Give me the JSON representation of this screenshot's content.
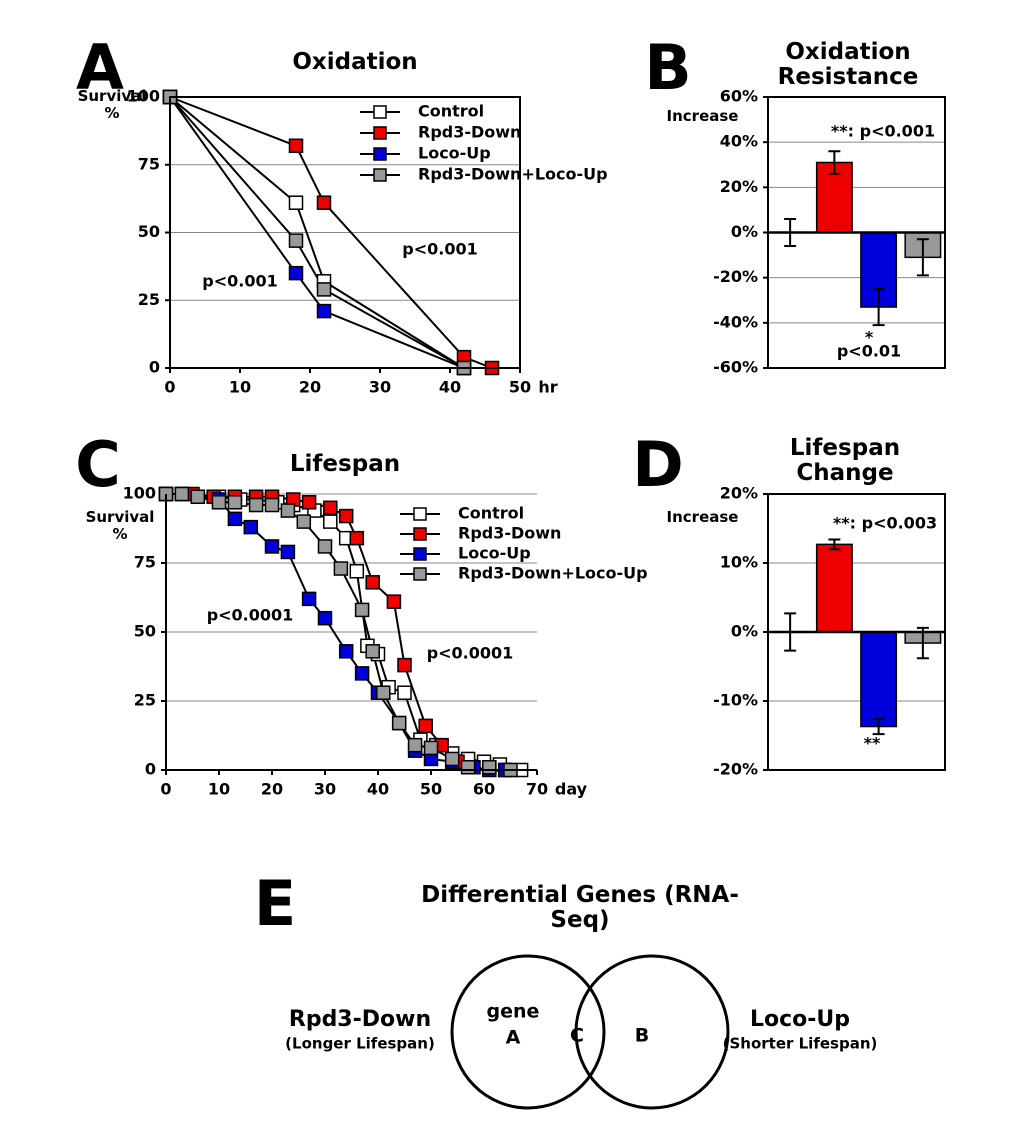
{
  "chart_data": [
    {
      "type": "line",
      "panel": "A",
      "title": "Oxidation",
      "ylabel": "Survival %",
      "xlabel": "hr",
      "xlim": [
        0,
        50
      ],
      "xticks": [
        0,
        10,
        20,
        30,
        40,
        50
      ],
      "ylim": [
        0,
        100
      ],
      "yticks": [
        0,
        25,
        50,
        75,
        100
      ],
      "grid": true,
      "series": [
        {
          "name": "Control",
          "color": "#ffffff",
          "x": [
            0,
            18,
            22,
            42
          ],
          "values": [
            100,
            61,
            32,
            0
          ]
        },
        {
          "name": "Rpd3-Down",
          "color": "#ee0000",
          "x": [
            0,
            18,
            22,
            42,
            46
          ],
          "values": [
            100,
            82,
            61,
            4,
            0
          ]
        },
        {
          "name": "Loco-Up",
          "color": "#0000dd",
          "x": [
            0,
            18,
            22,
            42
          ],
          "values": [
            100,
            35,
            21,
            0
          ]
        },
        {
          "name": "Rpd3-Down+Loco-Up",
          "color": "#999999",
          "x": [
            0,
            18,
            22,
            42
          ],
          "values": [
            100,
            47,
            29,
            0
          ]
        }
      ],
      "annotations": [
        "p<0.001",
        "p<0.001"
      ]
    },
    {
      "type": "bar",
      "panel": "B",
      "title": "Oxidation Resistance",
      "ylabel": "Increase",
      "categories": [
        null,
        null,
        null,
        null
      ],
      "values": [
        0,
        31,
        -33,
        -11
      ],
      "errors": [
        6,
        5,
        8,
        8
      ],
      "colors": [
        "#ffffff",
        "#ee0000",
        "#0000dd",
        "#999999"
      ],
      "ylim": [
        -60,
        60
      ],
      "yticks": [
        {
          "value": -60,
          "label": "-60%"
        },
        {
          "value": -40,
          "label": "-40%"
        },
        {
          "value": -20,
          "label": "-20%"
        },
        {
          "value": 0,
          "label": "0%"
        },
        {
          "value": 20,
          "label": "20%"
        },
        {
          "value": 40,
          "label": "40%"
        },
        {
          "value": 60,
          "label": "60%"
        }
      ],
      "grid": true,
      "annotations": [
        "**: p<0.001",
        "*",
        "p<0.01"
      ]
    },
    {
      "type": "line",
      "panel": "C",
      "title": "Lifespan",
      "ylabel": "Survival %",
      "xlabel": "day",
      "xlim": [
        0,
        70
      ],
      "xticks": [
        0,
        10,
        20,
        30,
        40,
        50,
        60,
        70
      ],
      "ylim": [
        0,
        100
      ],
      "yticks": [
        0,
        25,
        50,
        75,
        100
      ],
      "grid": true,
      "series": [
        {
          "name": "Control",
          "color": "#ffffff",
          "x": [
            0,
            3,
            6,
            10,
            14,
            17,
            21,
            24,
            28,
            31,
            34,
            36,
            38,
            40,
            42,
            45,
            48,
            51,
            54,
            57,
            60,
            63,
            67
          ],
          "values": [
            100,
            100,
            99,
            99,
            98,
            98,
            97,
            96,
            94,
            90,
            84,
            72,
            45,
            42,
            30,
            28,
            11,
            9,
            6,
            4,
            3,
            2,
            0
          ]
        },
        {
          "name": "Rpd3-Down",
          "color": "#ee0000",
          "x": [
            0,
            5,
            9,
            13,
            17,
            20,
            24,
            27,
            31,
            34,
            36,
            39,
            43,
            45,
            49,
            52,
            55,
            58,
            61,
            64
          ],
          "values": [
            100,
            100,
            99,
            99,
            99,
            99,
            98,
            97,
            95,
            92,
            84,
            68,
            61,
            38,
            16,
            9,
            3,
            1,
            1,
            0
          ]
        },
        {
          "name": "Loco-Up",
          "color": "#0000dd",
          "x": [
            0,
            3,
            6,
            10,
            13,
            16,
            20,
            23,
            27,
            30,
            34,
            37,
            40,
            44,
            47,
            50,
            54,
            58,
            61,
            64
          ],
          "values": [
            100,
            100,
            99,
            98,
            91,
            88,
            81,
            79,
            62,
            55,
            43,
            35,
            28,
            17,
            7,
            4,
            3,
            1,
            0,
            0
          ]
        },
        {
          "name": "Rpd3-Down+Loco-Up",
          "color": "#999999",
          "x": [
            0,
            3,
            6,
            10,
            13,
            17,
            20,
            23,
            26,
            30,
            33,
            37,
            39,
            41,
            44,
            47,
            50,
            54,
            57,
            61,
            65
          ],
          "values": [
            100,
            100,
            99,
            97,
            97,
            96,
            96,
            94,
            90,
            81,
            73,
            58,
            43,
            28,
            17,
            9,
            8,
            4,
            1,
            1,
            0
          ]
        }
      ],
      "annotations": [
        "p<0.0001",
        "p<0.0001"
      ]
    },
    {
      "type": "bar",
      "panel": "D",
      "title": "Lifespan Change",
      "ylabel": "Increase",
      "categories": [
        null,
        null,
        null,
        null
      ],
      "values": [
        0,
        12.7,
        -13.7,
        -1.6
      ],
      "errors": [
        2.7,
        0.7,
        1.1,
        2.2
      ],
      "colors": [
        "#ffffff",
        "#ee0000",
        "#0000dd",
        "#999999"
      ],
      "ylim": [
        -20,
        20
      ],
      "yticks": [
        {
          "value": -20,
          "label": "-20%"
        },
        {
          "value": -10,
          "label": "-10%"
        },
        {
          "value": 0,
          "label": "0%"
        },
        {
          "value": 10,
          "label": "10%"
        },
        {
          "value": 20,
          "label": "20%"
        }
      ],
      "grid": true,
      "annotations": [
        "**: p<0.003",
        "**"
      ]
    }
  ],
  "diagram": {
    "panel": "E",
    "title": "Differential Genes (RNA-Seq)",
    "sets": [
      {
        "label": "Rpd3-Down",
        "note": "(Longer Lifespan)",
        "color": "#ee0000"
      },
      {
        "label": "Loco-Up",
        "note": "(Shorter Lifespan)",
        "color": "#0000dd"
      }
    ],
    "region_note": "gene",
    "regions": [
      "A",
      "C",
      "B"
    ]
  }
}
